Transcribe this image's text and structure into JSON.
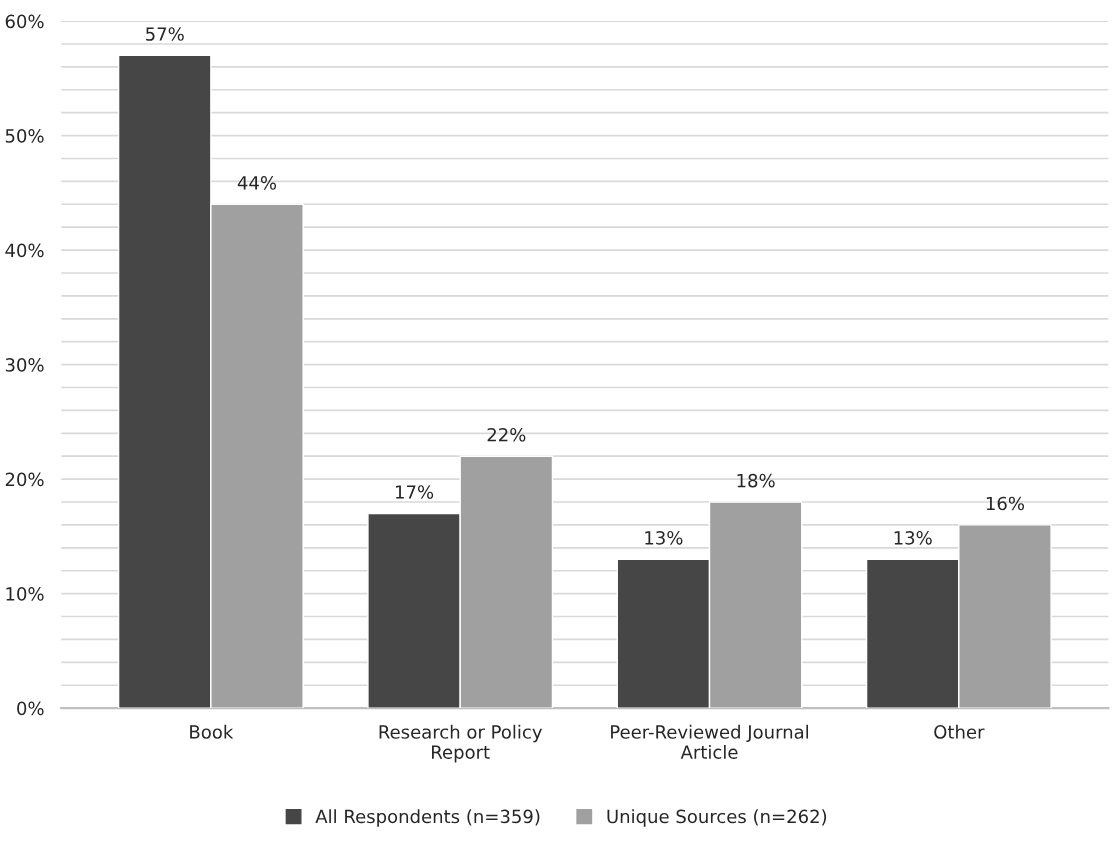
{
  "chart_data": {
    "type": "bar",
    "categories": [
      "Book",
      "Research or Policy\nReport",
      "Peer-Reviewed Journal\nArticle",
      "Other"
    ],
    "series": [
      {
        "name": "All Respondents (n=359)",
        "color": "#464646",
        "values": [
          57,
          17,
          13,
          13
        ],
        "value_labels": [
          "57%",
          "17%",
          "13%",
          "13%"
        ]
      },
      {
        "name": "Unique Sources (n=262)",
        "color": "#a0a0a0",
        "values": [
          44,
          22,
          18,
          16
        ],
        "value_labels": [
          "44%",
          "22%",
          "18%",
          "16%"
        ]
      }
    ],
    "ylim": [
      0,
      60
    ],
    "yticks": [
      {
        "value": 0,
        "label": "0%"
      },
      {
        "value": 2,
        "label": null
      },
      {
        "value": 4,
        "label": null
      },
      {
        "value": 6,
        "label": null
      },
      {
        "value": 8,
        "label": null
      },
      {
        "value": 10,
        "label": "10%"
      },
      {
        "value": 12,
        "label": null
      },
      {
        "value": 14,
        "label": null
      },
      {
        "value": 16,
        "label": null
      },
      {
        "value": 18,
        "label": null
      },
      {
        "value": 20,
        "label": "20%"
      },
      {
        "value": 22,
        "label": null
      },
      {
        "value": 24,
        "label": null
      },
      {
        "value": 26,
        "label": null
      },
      {
        "value": 28,
        "label": null
      },
      {
        "value": 30,
        "label": "30%"
      },
      {
        "value": 32,
        "label": null
      },
      {
        "value": 34,
        "label": null
      },
      {
        "value": 36,
        "label": null
      },
      {
        "value": 38,
        "label": null
      },
      {
        "value": 40,
        "label": "40%"
      },
      {
        "value": 42,
        "label": null
      },
      {
        "value": 44,
        "label": null
      },
      {
        "value": 46,
        "label": null
      },
      {
        "value": 48,
        "label": null
      },
      {
        "value": 50,
        "label": "50%"
      },
      {
        "value": 52,
        "label": null
      },
      {
        "value": 54,
        "label": null
      },
      {
        "value": 56,
        "label": null
      },
      {
        "value": 58,
        "label": null
      },
      {
        "value": 60,
        "label": "60%"
      }
    ],
    "grid": "y",
    "legend": "bottom"
  }
}
